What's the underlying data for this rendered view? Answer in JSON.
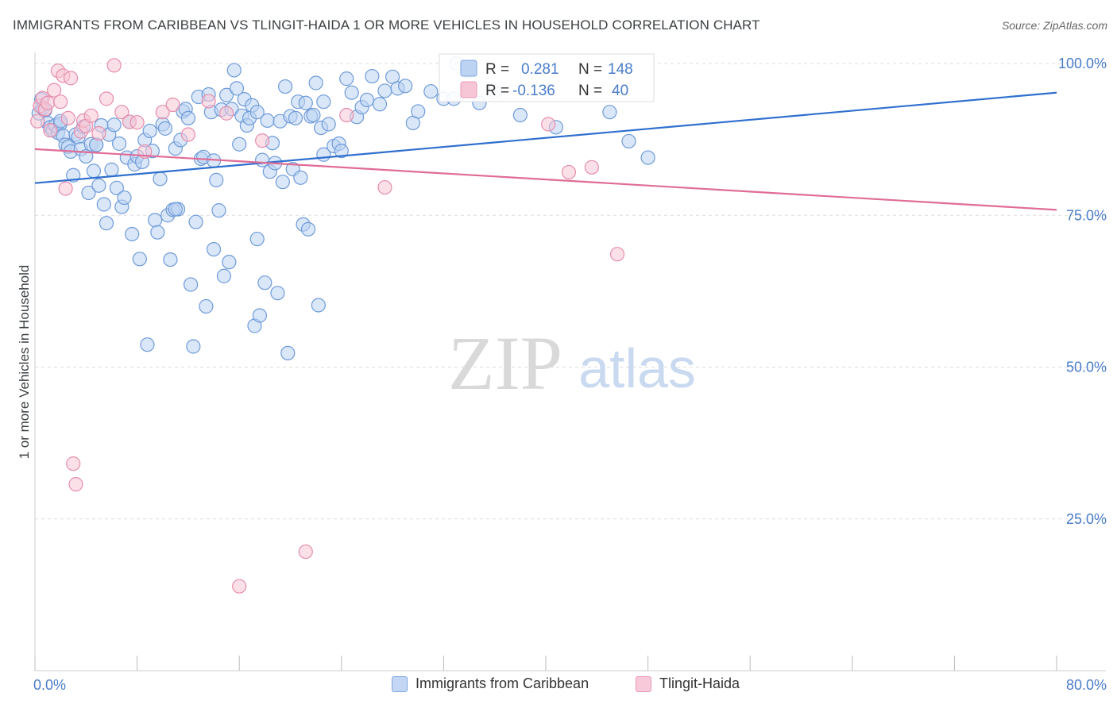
{
  "header": {
    "title": "IMMIGRANTS FROM CARIBBEAN VS TLINGIT-HAIDA 1 OR MORE VEHICLES IN HOUSEHOLD CORRELATION CHART",
    "source": "Source: ZipAtlas.com"
  },
  "watermark": {
    "zip": "ZIP",
    "atlas": "atlas"
  },
  "legend": {
    "r_label": "R =",
    "n_label": "N =",
    "rows": [
      {
        "r": "0.281",
        "n": "148",
        "color": "#4a7cc9"
      },
      {
        "r": "-0.136",
        "n": "40",
        "color": "#4a7cc9"
      }
    ]
  },
  "bottom_legend": [
    {
      "label": "Immigrants from Caribbean",
      "fill": "#c3d6f3",
      "stroke": "#7fa6e0"
    },
    {
      "label": "Tlingit-Haida",
      "fill": "#f8c9d8",
      "stroke": "#e99ab3"
    }
  ],
  "colors": {
    "blue_fill": "#bcd3f2",
    "blue_stroke": "#6f9bd9",
    "blue_line": "#2f6fcf",
    "pink_fill": "#f7c6d6",
    "pink_stroke": "#e58eac",
    "pink_line": "#e06c97",
    "axis_text": "#4a7cc9",
    "grid": "#dddddd"
  },
  "chart_data": {
    "type": "scatter",
    "title": "IMMIGRANTS FROM CARIBBEAN VS TLINGIT-HAIDA 1 OR MORE VEHICLES IN HOUSEHOLD CORRELATION CHART",
    "xlabel": "",
    "ylabel": "1 or more Vehicles in Household",
    "xlim": [
      0,
      80
    ],
    "ylim": [
      0,
      100
    ],
    "x_tick_labels": [
      "0.0%",
      "80.0%"
    ],
    "y_tick_labels": [
      "100.0%",
      "75.0%",
      "50.0%",
      "25.0%"
    ],
    "y_ticks": [
      100,
      75,
      50,
      25
    ],
    "grid": "horizontal dashed",
    "legend_placement": "top-center",
    "series": [
      {
        "name": "Immigrants from Caribbean",
        "R": 0.281,
        "N": 148,
        "trend": {
          "x": [
            0,
            80
          ],
          "y": [
            80.3,
            95.2
          ]
        },
        "points": [
          [
            0.3,
            91.8
          ],
          [
            0.5,
            94.1
          ],
          [
            0.6,
            92.7
          ],
          [
            0.8,
            92.3
          ],
          [
            1.0,
            90.2
          ],
          [
            1.2,
            89.5
          ],
          [
            1.4,
            89.0
          ],
          [
            1.6,
            89.8
          ],
          [
            1.8,
            88.6
          ],
          [
            2.0,
            90.1
          ],
          [
            2.2,
            88.1
          ],
          [
            2.4,
            86.6
          ],
          [
            2.6,
            86.3
          ],
          [
            2.8,
            85.5
          ],
          [
            3.0,
            81.6
          ],
          [
            3.2,
            88.3
          ],
          [
            3.4,
            87.9
          ],
          [
            3.6,
            85.9
          ],
          [
            3.8,
            89.6
          ],
          [
            4.0,
            84.7
          ],
          [
            4.2,
            78.7
          ],
          [
            4.4,
            86.7
          ],
          [
            4.6,
            82.3
          ],
          [
            4.8,
            86.6
          ],
          [
            5.0,
            79.9
          ],
          [
            5.2,
            89.8
          ],
          [
            5.4,
            76.8
          ],
          [
            5.6,
            73.7
          ],
          [
            5.8,
            88.3
          ],
          [
            6.0,
            82.5
          ],
          [
            6.2,
            89.9
          ],
          [
            6.4,
            79.5
          ],
          [
            6.6,
            86.8
          ],
          [
            6.8,
            76.4
          ],
          [
            7.0,
            77.9
          ],
          [
            7.2,
            84.5
          ],
          [
            7.4,
            90.4
          ],
          [
            7.6,
            71.9
          ],
          [
            7.8,
            83.4
          ],
          [
            8.0,
            84.7
          ],
          [
            8.2,
            67.8
          ],
          [
            8.4,
            83.8
          ],
          [
            8.6,
            87.4
          ],
          [
            8.8,
            53.7
          ],
          [
            9.0,
            88.9
          ],
          [
            9.2,
            85.6
          ],
          [
            9.4,
            74.2
          ],
          [
            9.6,
            72.2
          ],
          [
            9.8,
            81.0
          ],
          [
            10.0,
            90.0
          ],
          [
            10.2,
            89.3
          ],
          [
            10.4,
            75.0
          ],
          [
            10.6,
            67.7
          ],
          [
            10.8,
            75.9
          ],
          [
            11.0,
            86.0
          ],
          [
            11.2,
            76.0
          ],
          [
            11.4,
            87.4
          ],
          [
            11.6,
            92.1
          ],
          [
            11.8,
            92.5
          ],
          [
            12.0,
            91.0
          ],
          [
            12.2,
            63.6
          ],
          [
            12.4,
            53.4
          ],
          [
            12.6,
            73.9
          ],
          [
            12.8,
            94.5
          ],
          [
            13.0,
            84.3
          ],
          [
            13.2,
            84.6
          ],
          [
            13.4,
            60.0
          ],
          [
            13.6,
            94.9
          ],
          [
            13.8,
            92.0
          ],
          [
            14.0,
            69.4
          ],
          [
            14.2,
            80.8
          ],
          [
            14.4,
            75.8
          ],
          [
            14.6,
            92.4
          ],
          [
            14.8,
            65.0
          ],
          [
            15.0,
            94.8
          ],
          [
            15.2,
            67.3
          ],
          [
            15.4,
            92.5
          ],
          [
            15.6,
            98.9
          ],
          [
            15.8,
            95.9
          ],
          [
            16.0,
            86.7
          ],
          [
            16.2,
            91.4
          ],
          [
            16.4,
            94.1
          ],
          [
            16.6,
            89.8
          ],
          [
            16.8,
            91.0
          ],
          [
            17.0,
            93.1
          ],
          [
            17.2,
            56.8
          ],
          [
            17.4,
            71.1
          ],
          [
            17.6,
            58.5
          ],
          [
            17.8,
            84.1
          ],
          [
            18.0,
            63.9
          ],
          [
            18.2,
            90.6
          ],
          [
            18.4,
            82.2
          ],
          [
            18.6,
            86.9
          ],
          [
            18.8,
            83.6
          ],
          [
            19.0,
            62.2
          ],
          [
            19.2,
            90.5
          ],
          [
            19.4,
            80.5
          ],
          [
            19.6,
            96.2
          ],
          [
            19.8,
            52.3
          ],
          [
            20.0,
            91.3
          ],
          [
            20.2,
            82.6
          ],
          [
            20.4,
            91.0
          ],
          [
            20.6,
            93.7
          ],
          [
            20.8,
            81.2
          ],
          [
            21.0,
            73.5
          ],
          [
            21.2,
            93.5
          ],
          [
            21.4,
            72.7
          ],
          [
            21.6,
            91.3
          ],
          [
            21.8,
            91.5
          ],
          [
            22.0,
            96.8
          ],
          [
            22.2,
            60.2
          ],
          [
            22.4,
            89.4
          ],
          [
            22.6,
            85.0
          ],
          [
            23.0,
            90.0
          ],
          [
            23.4,
            86.4
          ],
          [
            23.8,
            86.8
          ],
          [
            24.0,
            85.6
          ],
          [
            24.4,
            97.5
          ],
          [
            24.8,
            95.2
          ],
          [
            25.2,
            91.2
          ],
          [
            25.6,
            92.8
          ],
          [
            26.0,
            94.0
          ],
          [
            26.4,
            97.9
          ],
          [
            27.0,
            93.3
          ],
          [
            27.4,
            95.5
          ],
          [
            28.0,
            97.8
          ],
          [
            28.4,
            95.9
          ],
          [
            29.0,
            96.3
          ],
          [
            29.6,
            90.2
          ],
          [
            30.0,
            92.1
          ],
          [
            31.0,
            95.4
          ],
          [
            32.0,
            94.2
          ],
          [
            32.8,
            94.2
          ],
          [
            33.0,
            100.0
          ],
          [
            34.0,
            98.7
          ],
          [
            34.8,
            93.5
          ],
          [
            36.0,
            95.4
          ],
          [
            38.0,
            91.5
          ],
          [
            40.8,
            89.5
          ],
          [
            45.0,
            92.0
          ],
          [
            46.5,
            87.2
          ],
          [
            48.0,
            84.5
          ],
          [
            11.0,
            76.0
          ],
          [
            22.6,
            93.7
          ],
          [
            14.0,
            84.0
          ],
          [
            17.4,
            92.0
          ],
          [
            4.8,
            86.6
          ],
          [
            2.0,
            90.5
          ]
        ]
      },
      {
        "name": "Tlingit-Haida",
        "R": -0.136,
        "N": 40,
        "trend": {
          "x": [
            0,
            80
          ],
          "y": [
            85.9,
            75.9
          ]
        },
        "points": [
          [
            0.2,
            90.5
          ],
          [
            0.4,
            93.0
          ],
          [
            0.6,
            94.3
          ],
          [
            0.8,
            92.5
          ],
          [
            1.0,
            93.5
          ],
          [
            1.2,
            89.0
          ],
          [
            1.5,
            95.6
          ],
          [
            1.8,
            98.8
          ],
          [
            2.0,
            93.7
          ],
          [
            2.2,
            98.0
          ],
          [
            2.4,
            79.4
          ],
          [
            2.6,
            91.0
          ],
          [
            2.8,
            97.6
          ],
          [
            3.0,
            34.1
          ],
          [
            3.2,
            30.7
          ],
          [
            3.6,
            88.8
          ],
          [
            3.8,
            90.6
          ],
          [
            4.0,
            89.7
          ],
          [
            4.4,
            91.4
          ],
          [
            5.0,
            88.5
          ],
          [
            5.6,
            94.2
          ],
          [
            6.2,
            99.7
          ],
          [
            6.8,
            92.0
          ],
          [
            7.4,
            90.4
          ],
          [
            8.0,
            90.3
          ],
          [
            8.6,
            85.5
          ],
          [
            10.0,
            92.0
          ],
          [
            10.8,
            93.2
          ],
          [
            12.0,
            88.3
          ],
          [
            13.6,
            93.8
          ],
          [
            15.0,
            91.8
          ],
          [
            16.0,
            13.9
          ],
          [
            17.8,
            87.3
          ],
          [
            21.2,
            19.6
          ],
          [
            24.4,
            91.5
          ],
          [
            27.4,
            79.6
          ],
          [
            40.2,
            90.0
          ],
          [
            41.8,
            82.1
          ],
          [
            43.6,
            82.9
          ],
          [
            45.6,
            68.6
          ]
        ]
      }
    ]
  }
}
